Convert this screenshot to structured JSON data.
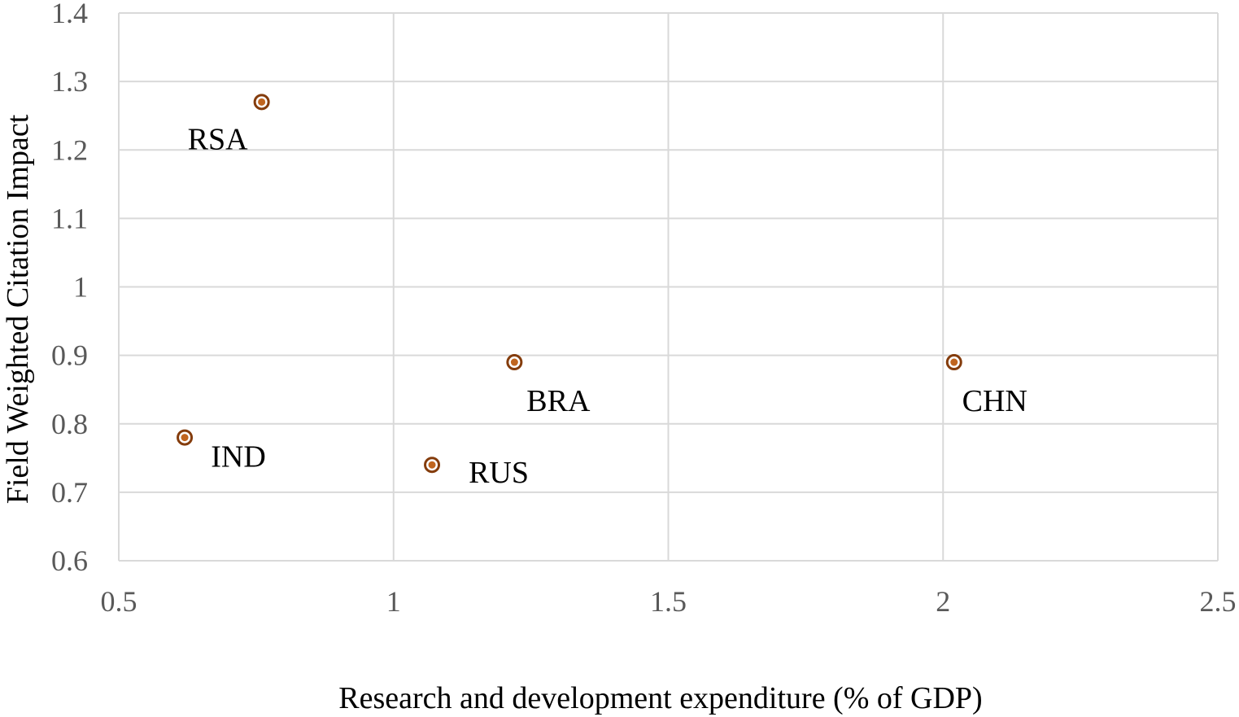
{
  "chart_data": {
    "type": "scatter",
    "title": "",
    "xlabel": "Research and development expenditure (% of GDP)",
    "ylabel": "Field Weighted Citation Impact",
    "xlim": [
      0.5,
      2.5
    ],
    "ylim": [
      0.6,
      1.4
    ],
    "x_ticks": [
      "0.5",
      "1",
      "1.5",
      "2",
      "2.5"
    ],
    "y_ticks": [
      "0.6",
      "0.7",
      "0.8",
      "0.9",
      "1",
      "1.1",
      "1.2",
      "1.3",
      "1.4"
    ],
    "grid": true,
    "legend": "none",
    "points": [
      {
        "label": "RSA",
        "x": 0.76,
        "y": 1.27
      },
      {
        "label": "BRA",
        "x": 1.22,
        "y": 0.89
      },
      {
        "label": "CHN",
        "x": 2.02,
        "y": 0.89
      },
      {
        "label": "IND",
        "x": 0.62,
        "y": 0.78
      },
      {
        "label": "RUS",
        "x": 1.07,
        "y": 0.74
      }
    ],
    "colors": {
      "marker_fill": "#c0651f",
      "marker_outline": "#843c0c",
      "grid": "#d9d9d9"
    }
  }
}
